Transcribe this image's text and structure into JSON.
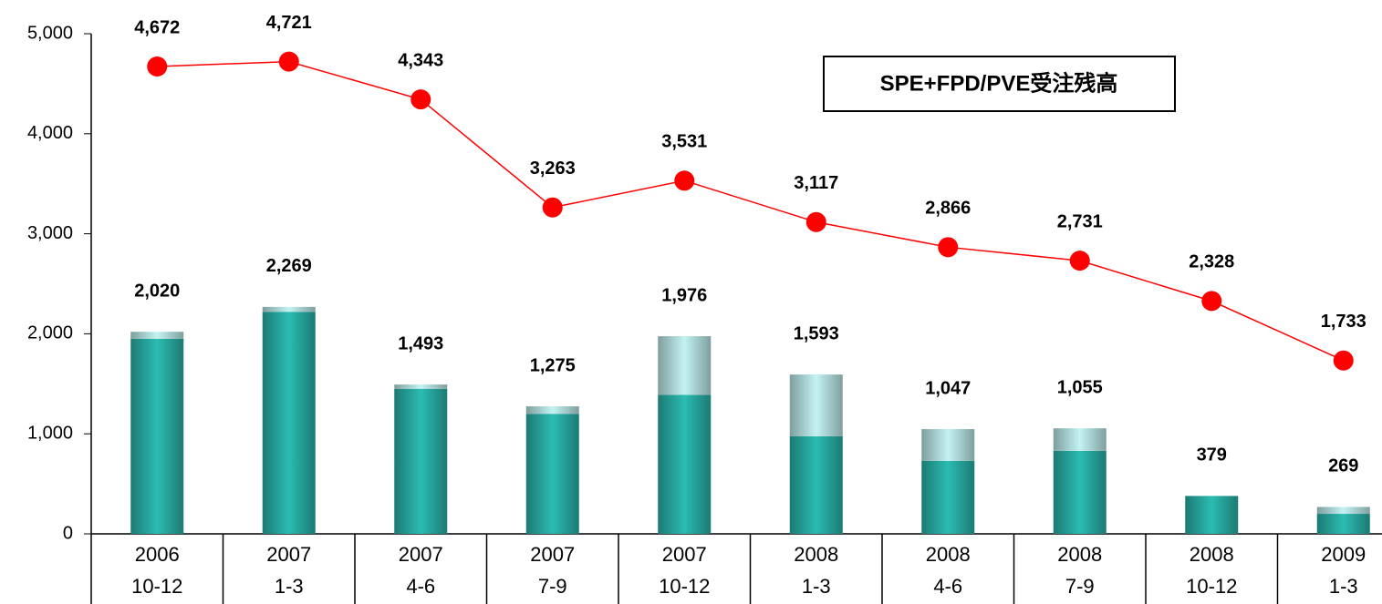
{
  "chart_data": {
    "type": "bar-line",
    "categories": [
      [
        "2006",
        "10-12"
      ],
      [
        "2007",
        "1-3"
      ],
      [
        "2007",
        "4-6"
      ],
      [
        "2007",
        "7-9"
      ],
      [
        "2007",
        "10-12"
      ],
      [
        "2008",
        "1-3"
      ],
      [
        "2008",
        "4-6"
      ],
      [
        "2008",
        "7-9"
      ],
      [
        "2008",
        "10-12"
      ],
      [
        "2009",
        "1-3"
      ]
    ],
    "series": [
      {
        "type": "bar",
        "color": "#2bbcb2",
        "values": [
          1950,
          2220,
          1450,
          1200,
          1390,
          975,
          730,
          830,
          379,
          200
        ]
      },
      {
        "type": "bar",
        "color": "#c4f3f3",
        "values": [
          70,
          49,
          43,
          75,
          586,
          618,
          317,
          225,
          0,
          69
        ]
      },
      {
        "type": "line",
        "name": "SPE+FPD/PVE受注残高",
        "color": "#ff0000",
        "values": [
          4672,
          4721,
          4343,
          3263,
          3531,
          3117,
          2866,
          2731,
          2328,
          1733
        ],
        "value_labels": [
          "4,672",
          "4,721",
          "4,343",
          "3,263",
          "3,531",
          "3,117",
          "2,866",
          "2,731",
          "2,328",
          "1,733"
        ]
      }
    ],
    "bar_totals": {
      "values": [
        2020,
        2269,
        1493,
        1275,
        1976,
        1593,
        1047,
        1055,
        379,
        269
      ],
      "value_labels": [
        "2,020",
        "2,269",
        "1,493",
        "1,275",
        "1,976",
        "1,593",
        "1,047",
        "1,055",
        "379",
        "269"
      ]
    },
    "ylim": [
      0,
      5000
    ],
    "yticks": [
      0,
      {
        "value": 1000,
        "label": "1,000"
      },
      {
        "value": 2000,
        "label": "2,000"
      },
      {
        "value": 3000,
        "label": "3,000"
      },
      {
        "value": 4000,
        "label": "4,000"
      },
      {
        "value": 5000,
        "label": "5,000"
      }
    ],
    "grid": false
  }
}
